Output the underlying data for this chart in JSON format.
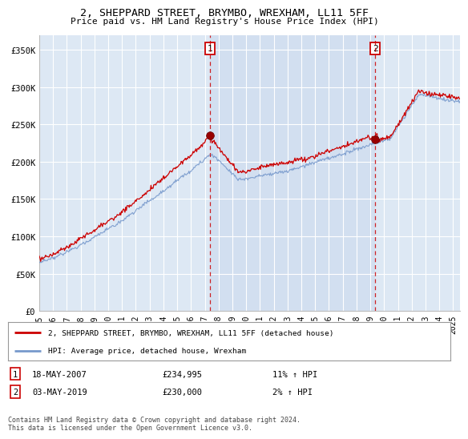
{
  "title": "2, SHEPPARD STREET, BRYMBO, WREXHAM, LL11 5FF",
  "subtitle": "Price paid vs. HM Land Registry's House Price Index (HPI)",
  "ylabel_ticks": [
    "£0",
    "£50K",
    "£100K",
    "£150K",
    "£200K",
    "£250K",
    "£300K",
    "£350K"
  ],
  "ytick_values": [
    0,
    50000,
    100000,
    150000,
    200000,
    250000,
    300000,
    350000
  ],
  "ylim": [
    0,
    370000
  ],
  "xlim_start": 1995.0,
  "xlim_end": 2025.5,
  "transaction1": {
    "label": "1",
    "date": "18-MAY-2007",
    "price": 234995,
    "x": 2007.38,
    "hpi_pct": "11%",
    "direction": "↑"
  },
  "transaction2": {
    "label": "2",
    "date": "03-MAY-2019",
    "price": 230000,
    "x": 2019.35,
    "hpi_pct": "2%",
    "direction": "↑"
  },
  "legend_line1": "2, SHEPPARD STREET, BRYMBO, WREXHAM, LL11 5FF (detached house)",
  "legend_line2": "HPI: Average price, detached house, Wrexham",
  "line_color_property": "#cc0000",
  "line_color_hpi": "#7799cc",
  "bg_color": "#dde8f4",
  "bg_color_between": "#ddeeff",
  "grid_color": "#ffffff",
  "box_color": "#cc0000",
  "xtick_years": [
    1995,
    1996,
    1997,
    1998,
    1999,
    2000,
    2001,
    2002,
    2003,
    2004,
    2005,
    2006,
    2007,
    2008,
    2009,
    2010,
    2011,
    2012,
    2013,
    2014,
    2015,
    2016,
    2017,
    2018,
    2019,
    2020,
    2021,
    2022,
    2023,
    2024,
    2025
  ]
}
